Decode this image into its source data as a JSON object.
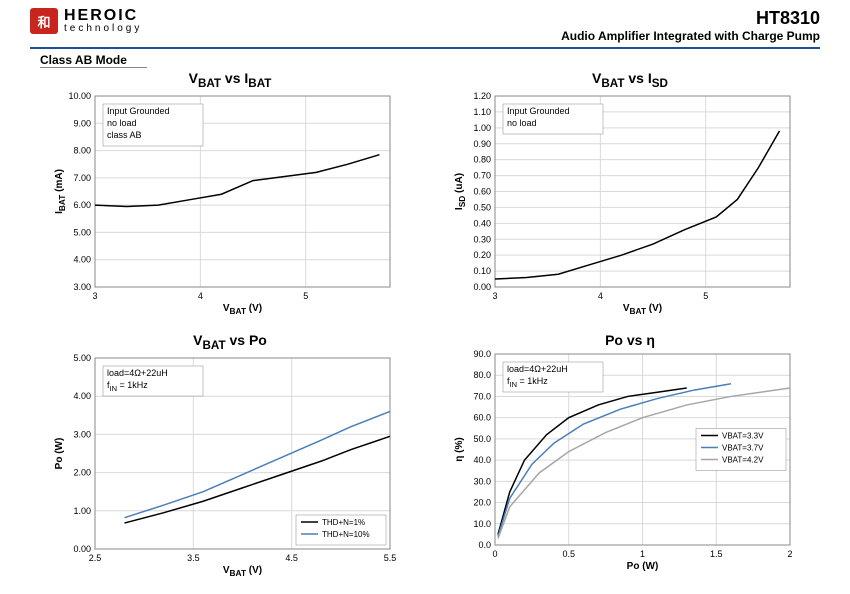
{
  "header": {
    "logo_glyph": "和",
    "logo_line1": "HEROIC",
    "logo_line2": "technology",
    "part_number": "HT8310",
    "subtitle": "Audio Amplifier Integrated with Charge Pump"
  },
  "section_title": "Class AB Mode",
  "colors": {
    "accent": "#1f4e9c",
    "logo_bg": "#c8251f",
    "grid": "#d9d9d9",
    "border": "#888888",
    "series_black": "#000000",
    "series_blue": "#4a7ebb",
    "series_gray": "#a6a6a6"
  },
  "charts": {
    "c1": {
      "title_html": "V<sub>BAT</sub> vs I<sub>BAT</sub>",
      "xlabel_html": "V<sub>BAT</sub> (V)",
      "ylabel_html": "I<sub>BAT</sub> (mA)",
      "xlim": [
        3,
        5.8
      ],
      "xticks": [
        3,
        4,
        5
      ],
      "ylim": [
        3,
        10
      ],
      "yticks": [
        3,
        4,
        5,
        6,
        7,
        8,
        9,
        10
      ],
      "ytick_fmt": 2,
      "annotation": [
        "Input Grounded",
        "no load",
        "class AB"
      ],
      "series": [
        {
          "color": "#000000",
          "points": [
            [
              3.0,
              6.0
            ],
            [
              3.3,
              5.95
            ],
            [
              3.6,
              6.0
            ],
            [
              3.9,
              6.2
            ],
            [
              4.2,
              6.4
            ],
            [
              4.5,
              6.9
            ],
            [
              4.8,
              7.05
            ],
            [
              5.1,
              7.2
            ],
            [
              5.4,
              7.5
            ],
            [
              5.7,
              7.85
            ]
          ]
        }
      ]
    },
    "c2": {
      "title_html": "V<sub>BAT</sub> vs I<sub>SD</sub>",
      "xlabel_html": "V<sub>BAT</sub> (V)",
      "ylabel_html": "I<sub>SD</sub> (uA)",
      "xlim": [
        3,
        5.8
      ],
      "xticks": [
        3,
        4,
        5
      ],
      "ylim": [
        0,
        1.2
      ],
      "yticks": [
        0,
        0.1,
        0.2,
        0.3,
        0.4,
        0.5,
        0.6,
        0.7,
        0.8,
        0.9,
        1.0,
        1.1,
        1.2
      ],
      "ytick_fmt": 2,
      "annotation": [
        "Input Grounded",
        "no load"
      ],
      "series": [
        {
          "color": "#000000",
          "points": [
            [
              3.0,
              0.05
            ],
            [
              3.3,
              0.06
            ],
            [
              3.6,
              0.08
            ],
            [
              3.9,
              0.14
            ],
            [
              4.2,
              0.2
            ],
            [
              4.5,
              0.27
            ],
            [
              4.8,
              0.36
            ],
            [
              5.1,
              0.44
            ],
            [
              5.3,
              0.55
            ],
            [
              5.5,
              0.75
            ],
            [
              5.7,
              0.98
            ]
          ]
        }
      ]
    },
    "c3": {
      "title_html": "V<sub>BAT</sub> vs Po",
      "xlabel_html": "V<sub>BAT</sub> (V)",
      "ylabel_html": "Po (W)",
      "xlim": [
        2.5,
        5.5
      ],
      "xticks": [
        2.5,
        3.5,
        4.5,
        5.5
      ],
      "ylim": [
        0,
        5
      ],
      "yticks": [
        0,
        1,
        2,
        3,
        4,
        5
      ],
      "ytick_fmt": 2,
      "annotation": [
        "load=4Ω+22uH",
        "f<sub>IN</sub> = 1kHz"
      ],
      "legend": [
        {
          "label": "THD+N=1%",
          "color": "#000000"
        },
        {
          "label": "THD+N=10%",
          "color": "#4a7ebb"
        }
      ],
      "legend_pos": "br",
      "series": [
        {
          "color": "#000000",
          "points": [
            [
              2.8,
              0.68
            ],
            [
              3.2,
              0.95
            ],
            [
              3.6,
              1.25
            ],
            [
              4.0,
              1.6
            ],
            [
              4.4,
              1.95
            ],
            [
              4.8,
              2.3
            ],
            [
              5.1,
              2.6
            ],
            [
              5.5,
              2.95
            ]
          ]
        },
        {
          "color": "#4a7ebb",
          "points": [
            [
              2.8,
              0.82
            ],
            [
              3.2,
              1.15
            ],
            [
              3.6,
              1.5
            ],
            [
              4.0,
              1.95
            ],
            [
              4.4,
              2.4
            ],
            [
              4.8,
              2.85
            ],
            [
              5.1,
              3.2
            ],
            [
              5.5,
              3.6
            ]
          ]
        }
      ]
    },
    "c4": {
      "title_html": "Po vs η",
      "xlabel_html": "Po (W)",
      "ylabel_html": "η (%)",
      "xlim": [
        0,
        2
      ],
      "xticks": [
        0,
        0.5,
        1,
        1.5,
        2
      ],
      "ylim": [
        0,
        90
      ],
      "yticks": [
        0,
        10,
        20,
        30,
        40,
        50,
        60,
        70,
        80,
        90
      ],
      "ytick_fmt": 1,
      "annotation": [
        "load=4Ω+22uH",
        "f<sub>IN</sub> = 1kHz"
      ],
      "legend": [
        {
          "label": "VBAT=3.3V",
          "color": "#000000"
        },
        {
          "label": "VBAT=3.7V",
          "color": "#4a7ebb"
        },
        {
          "label": "VBAT=4.2V",
          "color": "#a6a6a6"
        }
      ],
      "legend_pos": "mr",
      "series": [
        {
          "color": "#000000",
          "points": [
            [
              0.02,
              5
            ],
            [
              0.1,
              25
            ],
            [
              0.2,
              40
            ],
            [
              0.35,
              52
            ],
            [
              0.5,
              60
            ],
            [
              0.7,
              66
            ],
            [
              0.9,
              70
            ],
            [
              1.1,
              72
            ],
            [
              1.3,
              74
            ]
          ]
        },
        {
          "color": "#4a7ebb",
          "points": [
            [
              0.02,
              4
            ],
            [
              0.1,
              22
            ],
            [
              0.25,
              38
            ],
            [
              0.4,
              48
            ],
            [
              0.6,
              57
            ],
            [
              0.85,
              64
            ],
            [
              1.1,
              69
            ],
            [
              1.35,
              73
            ],
            [
              1.6,
              76
            ]
          ]
        },
        {
          "color": "#a6a6a6",
          "points": [
            [
              0.02,
              3
            ],
            [
              0.1,
              18
            ],
            [
              0.3,
              34
            ],
            [
              0.5,
              44
            ],
            [
              0.75,
              53
            ],
            [
              1.0,
              60
            ],
            [
              1.3,
              66
            ],
            [
              1.6,
              70
            ],
            [
              2.0,
              74
            ]
          ]
        }
      ]
    }
  }
}
